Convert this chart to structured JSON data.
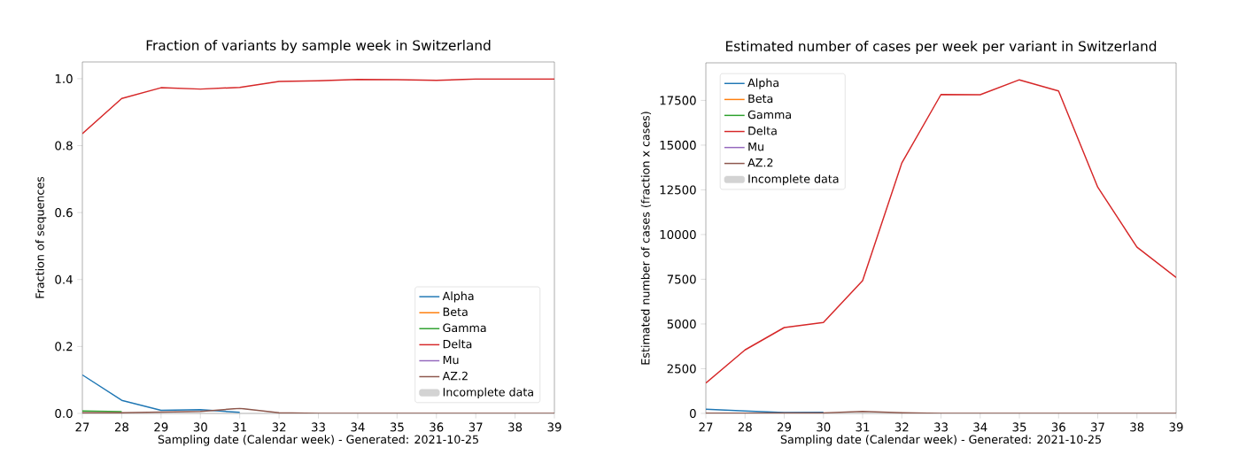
{
  "chart_data": [
    {
      "type": "line",
      "title": "Fraction of variants by sample week in Switzerland",
      "xlabel": "Sampling date (Calendar week) - Generated: 2021-10-25",
      "ylabel": "Fraction of sequences",
      "x": [
        27,
        28,
        29,
        30,
        31,
        32,
        33,
        34,
        35,
        36,
        37,
        38,
        39
      ],
      "series": [
        {
          "name": "Alpha",
          "color": "#1f77b4",
          "values": [
            0.115,
            0.039,
            0.009,
            0.011,
            0.003,
            null,
            null,
            null,
            null,
            null,
            null,
            null,
            null
          ]
        },
        {
          "name": "Beta",
          "color": "#ff7f0e",
          "values": [
            null,
            null,
            null,
            null,
            null,
            null,
            null,
            null,
            null,
            null,
            null,
            null,
            null
          ]
        },
        {
          "name": "Gamma",
          "color": "#2ca02c",
          "values": [
            0.007,
            0.005,
            null,
            null,
            null,
            null,
            null,
            null,
            null,
            null,
            null,
            null,
            null
          ]
        },
        {
          "name": "Delta",
          "color": "#d62728",
          "values": [
            0.836,
            0.941,
            0.973,
            0.969,
            0.974,
            0.992,
            0.994,
            0.998,
            0.997,
            0.995,
            0.999,
            0.999,
            0.999
          ]
        },
        {
          "name": "Mu",
          "color": "#9467bd",
          "values": [
            null,
            null,
            null,
            null,
            null,
            null,
            null,
            null,
            null,
            null,
            null,
            null,
            null
          ]
        },
        {
          "name": "AZ.2",
          "color": "#8c564b",
          "values": [
            0.002,
            0.002,
            0.004,
            0.006,
            0.015,
            0.002,
            0,
            0,
            0,
            0,
            0,
            0,
            0
          ]
        },
        {
          "name": "Incomplete data",
          "type": "area",
          "color": "#d3d3d3",
          "values": [
            null,
            null,
            null,
            null,
            null,
            null,
            null,
            null,
            null,
            null,
            null,
            null,
            null
          ]
        }
      ],
      "xlim": [
        27,
        39
      ],
      "ylim": [
        0,
        1.05
      ],
      "xticks": [
        27,
        28,
        29,
        30,
        31,
        32,
        33,
        34,
        35,
        36,
        37,
        38,
        39
      ],
      "yticks": [
        {
          "value": 0,
          "label": "0.0"
        },
        {
          "value": 0.2,
          "label": "0.2"
        },
        {
          "value": 0.4,
          "label": "0.4"
        },
        {
          "value": 0.6,
          "label": "0.6"
        },
        {
          "value": 0.8,
          "label": "0.8"
        },
        {
          "value": 1,
          "label": "1.0"
        }
      ],
      "legend": "bottom right",
      "marker": "none"
    },
    {
      "type": "line",
      "title": "Estimated number of cases per week per variant in Switzerland",
      "xlabel": "Sampling date (Calendar week) - Generated: 2021-10-25",
      "ylabel": "Estimated number of cases (fraction x cases)",
      "x": [
        27,
        28,
        29,
        30,
        31,
        32,
        33,
        34,
        35,
        36,
        37,
        38,
        39
      ],
      "series": [
        {
          "name": "Alpha",
          "color": "#1f77b4",
          "values": [
            230,
            130,
            50,
            60,
            null,
            null,
            null,
            null,
            null,
            null,
            null,
            null,
            null
          ]
        },
        {
          "name": "Beta",
          "color": "#ff7f0e",
          "values": [
            null,
            null,
            null,
            null,
            null,
            null,
            null,
            null,
            null,
            null,
            null,
            null,
            null
          ]
        },
        {
          "name": "Gamma",
          "color": "#2ca02c",
          "values": [
            null,
            null,
            null,
            null,
            null,
            null,
            null,
            null,
            null,
            null,
            null,
            null,
            null
          ]
        },
        {
          "name": "Delta",
          "color": "#d62728",
          "values": [
            1700,
            3550,
            4800,
            5080,
            7420,
            14000,
            17830,
            17820,
            18650,
            18030,
            12650,
            9300,
            7600
          ]
        },
        {
          "name": "Mu",
          "color": "#9467bd",
          "values": [
            null,
            null,
            null,
            null,
            null,
            null,
            null,
            null,
            null,
            null,
            null,
            null,
            null
          ]
        },
        {
          "name": "AZ.2",
          "color": "#8c564b",
          "values": [
            10,
            10,
            20,
            30,
            110,
            40,
            0,
            0,
            0,
            0,
            0,
            0,
            0
          ]
        },
        {
          "name": "Incomplete data",
          "type": "area",
          "color": "#d3d3d3",
          "values": [
            null,
            null,
            null,
            null,
            null,
            null,
            null,
            null,
            null,
            null,
            null,
            null,
            null
          ]
        }
      ],
      "xlim": [
        27,
        39
      ],
      "ylim": [
        0,
        19600
      ],
      "xticks": [
        27,
        28,
        29,
        30,
        31,
        32,
        33,
        34,
        35,
        36,
        37,
        38,
        39
      ],
      "yticks": [
        0,
        2500,
        5000,
        7500,
        10000,
        12500,
        15000,
        17500
      ],
      "legend": "top left",
      "marker": "none"
    }
  ]
}
